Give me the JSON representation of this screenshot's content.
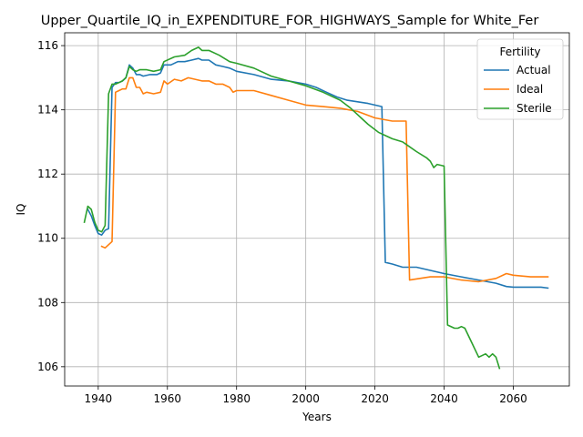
{
  "chart_data": {
    "type": "line",
    "title": "Upper_Quartile_IQ_in_EXPENDITURE_FOR_HIGHWAYS_Sample for White_Fer",
    "xlabel": "Years",
    "ylabel": "IQ",
    "xlim": [
      1930.3,
      2076.2
    ],
    "ylim": [
      105.4,
      116.4
    ],
    "x_ticks": [
      1940,
      1960,
      1980,
      2000,
      2020,
      2040,
      2060
    ],
    "y_ticks": [
      106,
      108,
      110,
      112,
      114,
      116
    ],
    "grid": true,
    "legend": {
      "title": "Fertility",
      "position": "top-right"
    },
    "colors": {
      "Actual": "#1f77b4",
      "Ideal": "#ff7f0e",
      "Sterile": "#2ca02c"
    },
    "series": [
      {
        "name": "Actual",
        "points": [
          [
            1937,
            110.9
          ],
          [
            1938,
            110.7
          ],
          [
            1939,
            110.4
          ],
          [
            1940,
            110.15
          ],
          [
            1941,
            110.1
          ],
          [
            1942,
            110.25
          ],
          [
            1943,
            110.3
          ],
          [
            1944,
            114.7
          ],
          [
            1945,
            114.85
          ],
          [
            1946,
            114.85
          ],
          [
            1947,
            114.9
          ],
          [
            1948,
            115.0
          ],
          [
            1949,
            115.4
          ],
          [
            1950,
            115.3
          ],
          [
            1951,
            115.1
          ],
          [
            1952,
            115.1
          ],
          [
            1953,
            115.05
          ],
          [
            1955,
            115.1
          ],
          [
            1957,
            115.1
          ],
          [
            1958,
            115.15
          ],
          [
            1959,
            115.4
          ],
          [
            1961,
            115.4
          ],
          [
            1963,
            115.5
          ],
          [
            1965,
            115.5
          ],
          [
            1967,
            115.55
          ],
          [
            1969,
            115.6
          ],
          [
            1970,
            115.55
          ],
          [
            1972,
            115.55
          ],
          [
            1974,
            115.4
          ],
          [
            1976,
            115.35
          ],
          [
            1978,
            115.3
          ],
          [
            1980,
            115.2
          ],
          [
            1985,
            115.1
          ],
          [
            1990,
            114.95
          ],
          [
            1995,
            114.9
          ],
          [
            2000,
            114.8
          ],
          [
            2003,
            114.7
          ],
          [
            2006,
            114.55
          ],
          [
            2009,
            114.4
          ],
          [
            2012,
            114.3
          ],
          [
            2015,
            114.25
          ],
          [
            2018,
            114.2
          ],
          [
            2020,
            114.15
          ],
          [
            2022,
            114.1
          ],
          [
            2023,
            109.25
          ],
          [
            2025,
            109.2
          ],
          [
            2028,
            109.1
          ],
          [
            2032,
            109.1
          ],
          [
            2036,
            109.0
          ],
          [
            2040,
            108.9
          ],
          [
            2045,
            108.8
          ],
          [
            2050,
            108.7
          ],
          [
            2055,
            108.6
          ],
          [
            2058,
            108.5
          ],
          [
            2060,
            108.48
          ],
          [
            2065,
            108.48
          ],
          [
            2068,
            108.48
          ],
          [
            2070,
            108.45
          ]
        ]
      },
      {
        "name": "Ideal",
        "points": [
          [
            1941,
            109.75
          ],
          [
            1942,
            109.7
          ],
          [
            1944,
            109.9
          ],
          [
            1945,
            114.55
          ],
          [
            1946,
            114.6
          ],
          [
            1947,
            114.65
          ],
          [
            1948,
            114.65
          ],
          [
            1949,
            115.0
          ],
          [
            1950,
            115.0
          ],
          [
            1951,
            114.7
          ],
          [
            1952,
            114.7
          ],
          [
            1953,
            114.5
          ],
          [
            1954,
            114.55
          ],
          [
            1956,
            114.5
          ],
          [
            1958,
            114.55
          ],
          [
            1959,
            114.9
          ],
          [
            1960,
            114.8
          ],
          [
            1962,
            114.95
          ],
          [
            1964,
            114.9
          ],
          [
            1966,
            115.0
          ],
          [
            1968,
            114.95
          ],
          [
            1970,
            114.9
          ],
          [
            1972,
            114.9
          ],
          [
            1974,
            114.8
          ],
          [
            1976,
            114.8
          ],
          [
            1978,
            114.7
          ],
          [
            1979,
            114.55
          ],
          [
            1980,
            114.6
          ],
          [
            1985,
            114.6
          ],
          [
            1990,
            114.45
          ],
          [
            1995,
            114.3
          ],
          [
            2000,
            114.15
          ],
          [
            2005,
            114.1
          ],
          [
            2010,
            114.05
          ],
          [
            2015,
            113.95
          ],
          [
            2020,
            113.75
          ],
          [
            2025,
            113.65
          ],
          [
            2029,
            113.65
          ],
          [
            2030,
            108.7
          ],
          [
            2033,
            108.75
          ],
          [
            2036,
            108.8
          ],
          [
            2040,
            108.8
          ],
          [
            2045,
            108.7
          ],
          [
            2050,
            108.65
          ],
          [
            2055,
            108.75
          ],
          [
            2058,
            108.9
          ],
          [
            2060,
            108.85
          ],
          [
            2065,
            108.8
          ],
          [
            2070,
            108.8
          ]
        ]
      },
      {
        "name": "Sterile",
        "points": [
          [
            1936,
            110.5
          ],
          [
            1937,
            111.0
          ],
          [
            1938,
            110.9
          ],
          [
            1939,
            110.5
          ],
          [
            1940,
            110.25
          ],
          [
            1941,
            110.2
          ],
          [
            1942,
            110.4
          ],
          [
            1943,
            114.5
          ],
          [
            1944,
            114.8
          ],
          [
            1945,
            114.8
          ],
          [
            1946,
            114.85
          ],
          [
            1947,
            114.9
          ],
          [
            1948,
            115.0
          ],
          [
            1949,
            115.35
          ],
          [
            1950,
            115.25
          ],
          [
            1951,
            115.2
          ],
          [
            1952,
            115.25
          ],
          [
            1954,
            115.25
          ],
          [
            1956,
            115.2
          ],
          [
            1958,
            115.25
          ],
          [
            1959,
            115.5
          ],
          [
            1962,
            115.65
          ],
          [
            1965,
            115.7
          ],
          [
            1967,
            115.85
          ],
          [
            1969,
            115.95
          ],
          [
            1970,
            115.85
          ],
          [
            1972,
            115.85
          ],
          [
            1975,
            115.7
          ],
          [
            1978,
            115.5
          ],
          [
            1980,
            115.45
          ],
          [
            1985,
            115.3
          ],
          [
            1990,
            115.05
          ],
          [
            1995,
            114.9
          ],
          [
            2000,
            114.75
          ],
          [
            2005,
            114.55
          ],
          [
            2010,
            114.3
          ],
          [
            2013,
            114.05
          ],
          [
            2016,
            113.75
          ],
          [
            2018,
            113.55
          ],
          [
            2021,
            113.3
          ],
          [
            2023,
            113.2
          ],
          [
            2025,
            113.1
          ],
          [
            2028,
            113.0
          ],
          [
            2030,
            112.85
          ],
          [
            2032,
            112.7
          ],
          [
            2035,
            112.5
          ],
          [
            2036,
            112.4
          ],
          [
            2037,
            112.2
          ],
          [
            2038,
            112.3
          ],
          [
            2040,
            112.25
          ],
          [
            2041,
            107.3
          ],
          [
            2043,
            107.2
          ],
          [
            2044,
            107.2
          ],
          [
            2045,
            107.25
          ],
          [
            2046,
            107.2
          ],
          [
            2048,
            106.75
          ],
          [
            2050,
            106.3
          ],
          [
            2052,
            106.4
          ],
          [
            2053,
            106.3
          ],
          [
            2054,
            106.4
          ],
          [
            2055,
            106.3
          ],
          [
            2056,
            105.95
          ]
        ]
      }
    ]
  }
}
